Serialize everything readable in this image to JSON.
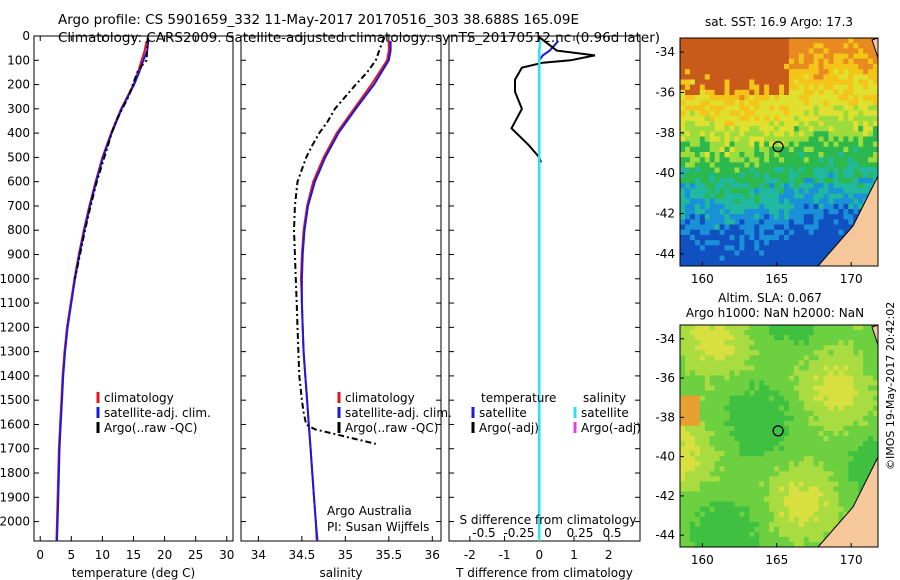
{
  "header": {
    "line1": "Argo profile: CS 5901659_332 11-May-2017 20170516_303 38.688S 165.09E",
    "line2": "Climatology: CARS2009. Satellite-adjusted climatology: synTS_20170512.nc (0.96d later)"
  },
  "colors": {
    "climatology": "#e8141b",
    "satellite": "#1a1adf",
    "argo": "#000000",
    "satellite_salinity": "#28e6f0",
    "argo_adj_salinity": "#e040e0"
  },
  "panels": {
    "temperature": {
      "xlabel": "temperature (deg C)",
      "legend": [
        "climatology",
        "satellite-adj. clim.",
        "Argo(..raw -QC)"
      ]
    },
    "salinity": {
      "xlabel": "salinity",
      "legend": [
        "climatology",
        "satellite-adj. clim.",
        "Argo(..raw -QC)"
      ],
      "note1": "Argo Australia",
      "note2": "PI: Susan Wijffels"
    },
    "difference": {
      "xlabel": "T difference from climatology",
      "top_label": "S difference from climatology",
      "legend_heads": [
        "temperature",
        "salinity"
      ],
      "legend": [
        "satellite",
        "Argo(-adj)",
        "satellite",
        "Argo(-adj)"
      ]
    },
    "sst_map": {
      "title": "sat. SST: 16.9 Argo: 17.3"
    },
    "sla_map": {
      "title1": "Altim. SLA: 0.067",
      "title2": "Argo h1000: NaN h2000: NaN"
    }
  },
  "stamp": "©IMOS 19-May-2017 20:42:02",
  "chart_data": [
    {
      "type": "line",
      "id": "temperature",
      "xlabel": "temperature (deg C)",
      "ylabel": "",
      "xlim": [
        -1,
        31
      ],
      "ylim": [
        2080,
        0
      ],
      "xticks": [
        0,
        5,
        10,
        15,
        20,
        25,
        30
      ],
      "yticks": [
        0,
        100,
        200,
        300,
        400,
        500,
        600,
        700,
        800,
        900,
        1000,
        1100,
        1200,
        1300,
        1400,
        1500,
        1600,
        1700,
        1800,
        1900,
        2000
      ],
      "series": [
        {
          "name": "climatology",
          "depth": [
            20,
            60,
            100,
            150,
            200,
            250,
            300,
            400,
            500,
            600,
            700,
            800,
            900,
            1000,
            1100,
            1200,
            1300,
            1400,
            1500,
            1600,
            1700,
            1800,
            1900,
            2000,
            2080
          ],
          "values": [
            17.1,
            16.8,
            16.3,
            15.7,
            15.0,
            14.0,
            13.0,
            11.4,
            10.0,
            8.9,
            7.9,
            7.0,
            6.2,
            5.5,
            4.9,
            4.3,
            3.9,
            3.6,
            3.4,
            3.2,
            3.0,
            2.9,
            2.8,
            2.7,
            2.6
          ]
        },
        {
          "name": "satellite-adj. clim.",
          "depth": [
            20,
            60,
            100,
            150,
            200,
            250,
            300,
            400,
            500,
            600,
            700,
            800,
            900,
            1000,
            1100,
            1200,
            1300,
            1400,
            1500,
            1600,
            1700,
            1800,
            1900,
            2000,
            2080
          ],
          "values": [
            17.4,
            17.2,
            16.6,
            15.9,
            15.1,
            14.1,
            13.1,
            11.5,
            10.1,
            9.0,
            8.0,
            7.1,
            6.3,
            5.6,
            5.0,
            4.4,
            4.0,
            3.7,
            3.5,
            3.3,
            3.1,
            3.0,
            2.9,
            2.8,
            2.7
          ]
        },
        {
          "name": "Argo(..raw -QC)",
          "depth": [
            5,
            50,
            100,
            120,
            150,
            200,
            250,
            300,
            350,
            400,
            450,
            500,
            600,
            700,
            800,
            900,
            1000
          ],
          "values": [
            17.3,
            17.2,
            17.1,
            16.4,
            15.6,
            14.9,
            14.2,
            13.2,
            12.2,
            11.5,
            10.9,
            10.3,
            9.1,
            8.1,
            7.2,
            6.4,
            5.6
          ]
        }
      ]
    },
    {
      "type": "line",
      "id": "salinity",
      "xlabel": "salinity",
      "xlim": [
        33.8,
        36.1
      ],
      "ylim": [
        2080,
        0
      ],
      "xticks": [
        34,
        34.5,
        35,
        35.5,
        36
      ],
      "series": [
        {
          "name": "climatology",
          "depth": [
            20,
            60,
            100,
            200,
            300,
            400,
            500,
            600,
            700,
            800,
            900,
            1000,
            1100,
            1200,
            1300,
            1400,
            1500,
            1600,
            1700,
            1800,
            1900,
            2000,
            2080
          ],
          "values": [
            35.5,
            35.5,
            35.48,
            35.3,
            35.1,
            34.9,
            34.75,
            34.63,
            34.56,
            34.52,
            34.5,
            34.49,
            34.5,
            34.51,
            34.52,
            34.54,
            34.56,
            34.58,
            34.6,
            34.62,
            34.64,
            34.66,
            34.67
          ]
        },
        {
          "name": "satellite-adj. clim.",
          "depth": [
            20,
            60,
            100,
            200,
            300,
            400,
            500,
            600,
            700,
            800,
            900,
            1000,
            1100,
            1200,
            1300,
            1400,
            1500,
            1600,
            1700,
            1800,
            1900,
            2000,
            2080
          ],
          "values": [
            35.52,
            35.52,
            35.5,
            35.33,
            35.12,
            34.92,
            34.77,
            34.65,
            34.57,
            34.53,
            34.51,
            34.5,
            34.5,
            34.51,
            34.52,
            34.54,
            34.56,
            34.58,
            34.6,
            34.62,
            34.64,
            34.66,
            34.68
          ]
        },
        {
          "name": "Argo(..raw -QC)",
          "depth": [
            5,
            50,
            100,
            150,
            200,
            250,
            300,
            350,
            400,
            450,
            500,
            600,
            700,
            800,
            900,
            1000,
            1100,
            1200,
            1300,
            1400,
            1500,
            1550,
            1600,
            1620,
            1680
          ],
          "values": [
            35.45,
            35.4,
            35.35,
            35.25,
            35.12,
            35.0,
            34.88,
            34.8,
            34.7,
            34.62,
            34.55,
            34.45,
            34.42,
            34.41,
            34.42,
            34.43,
            34.44,
            34.45,
            34.46,
            34.47,
            34.5,
            34.52,
            34.55,
            34.65,
            35.35
          ]
        }
      ]
    },
    {
      "type": "line",
      "id": "difference",
      "xlabel": "T difference from climatology",
      "xlim": [
        -2.6,
        2.9
      ],
      "ylim": [
        2080,
        0
      ],
      "xticks": [
        -2,
        -1,
        0,
        1,
        2
      ],
      "top_ticks": [
        "-0.5",
        "-0.25",
        "0",
        "0.25",
        "0.5"
      ],
      "series": [
        {
          "name": "satellite",
          "depth": [
            20,
            60,
            80,
            100,
            200,
            400,
            700,
            1000,
            1500,
            2000,
            2080
          ],
          "values": [
            0.55,
            0.3,
            0.1,
            0.0,
            0.0,
            0.0,
            0.0,
            0.0,
            0.0,
            0.0,
            0.0
          ]
        },
        {
          "name": "Argo(-adj)",
          "depth": [
            5,
            60,
            80,
            100,
            110,
            130,
            180,
            230,
            300,
            380,
            450,
            500,
            520
          ],
          "values": [
            0.0,
            0.5,
            1.6,
            0.9,
            0.1,
            -0.5,
            -0.7,
            -0.7,
            -0.5,
            -0.8,
            -0.3,
            0.0,
            0.05
          ]
        },
        {
          "name": "satellite (salinity)",
          "depth": [
            20,
            60,
            100,
            200,
            500,
            1000,
            1500,
            2000,
            2080
          ],
          "values": [
            0.03,
            0.0,
            0.0,
            0.0,
            0.0,
            0.0,
            0.0,
            0.0,
            0.0
          ]
        }
      ]
    },
    {
      "type": "heatmap",
      "id": "sst_map",
      "title": "sat. SST: 16.9 Argo: 17.3",
      "xticks": [
        160,
        165,
        170
      ],
      "yticks": [
        -34,
        -36,
        -38,
        -40,
        -42,
        -44
      ],
      "marker": [
        165.09,
        -38.688
      ]
    },
    {
      "type": "heatmap",
      "id": "sla_map",
      "title": "Altim. SLA: 0.067",
      "xticks": [
        160,
        165,
        170
      ],
      "yticks": [
        -34,
        -36,
        -38,
        -40,
        -42,
        -44
      ],
      "marker": [
        165.09,
        -38.688
      ]
    }
  ]
}
